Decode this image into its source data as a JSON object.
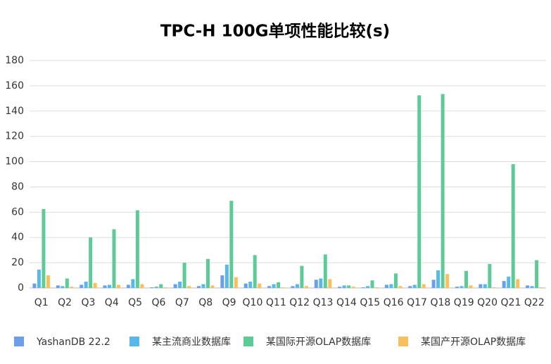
{
  "chart_data": {
    "type": "bar",
    "title": "TPC-H 100G单项性能比较(s)",
    "categories": [
      "Q1",
      "Q2",
      "Q3",
      "Q4",
      "Q5",
      "Q6",
      "Q7",
      "Q8",
      "Q9",
      "Q10",
      "Q11",
      "Q12",
      "Q13",
      "Q14",
      "Q15",
      "Q16",
      "Q17",
      "Q18",
      "Q19",
      "Q20",
      "Q21",
      "Q22"
    ],
    "series": [
      {
        "name": "YashanDB 22.2",
        "color": "#6d9eeb",
        "values": [
          3.5,
          2,
          2.5,
          2,
          2.5,
          0.5,
          3,
          1.5,
          10,
          3.5,
          1.5,
          1.5,
          6.5,
          1,
          0.5,
          2.5,
          1.5,
          6.5,
          1,
          3,
          5.5,
          2
        ]
      },
      {
        "name": "某主流商业数据库",
        "color": "#5ab8e8",
        "values": [
          14.5,
          1.5,
          5,
          2.5,
          7,
          1,
          5,
          3,
          18.5,
          5,
          3,
          3,
          7.5,
          2,
          1.5,
          3,
          2.5,
          14,
          1.5,
          3,
          9,
          1.5
        ]
      },
      {
        "name": "某国际开源OLAP数据库",
        "color": "#5ecb96",
        "values": [
          62.5,
          7.5,
          40,
          46.5,
          61.5,
          3,
          20,
          23,
          69,
          26,
          4.5,
          17.5,
          26.5,
          2,
          6,
          11.5,
          152.5,
          153.5,
          13.5,
          19,
          98,
          22
        ]
      },
      {
        "name": "某国产开源OLAP数据库",
        "color": "#f8bf5e",
        "values": [
          10,
          1,
          4,
          2.5,
          3,
          0.5,
          1.5,
          2,
          8.5,
          3.5,
          0.5,
          1.5,
          7,
          1,
          0.5,
          1.5,
          3,
          11,
          2,
          0.5,
          7,
          0.5
        ]
      }
    ],
    "ylim": [
      0,
      180
    ],
    "yticks": [
      0,
      20,
      40,
      60,
      80,
      100,
      120,
      140,
      160,
      180
    ],
    "grid": true,
    "legend": "bottom"
  }
}
